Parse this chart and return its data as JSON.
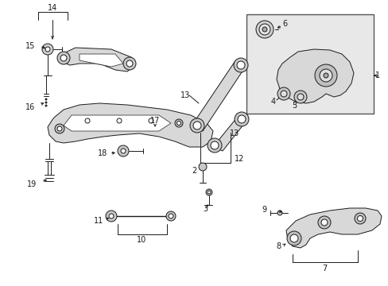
{
  "bg_color": "#ffffff",
  "line_color": "#1a1a1a",
  "fill_color": "#f0f0f0",
  "box_fill": "#e8e8e8",
  "figsize": [
    4.89,
    3.6
  ],
  "dpi": 100,
  "lw": 0.7,
  "lw_thick": 1.0
}
